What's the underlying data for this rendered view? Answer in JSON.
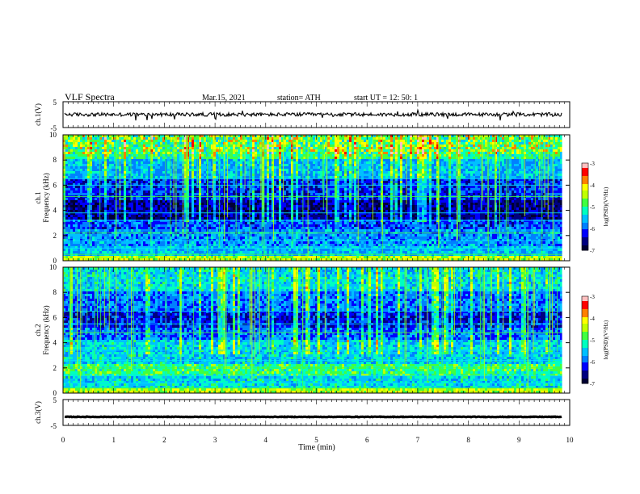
{
  "header": {
    "title": "VLF  Spectra",
    "date": "Mar.15, 2021",
    "station": "station= ATH",
    "start": "start  UT  =    12: 50: 1"
  },
  "chart_data": [
    {
      "type": "line",
      "name": "ch1-waveform",
      "ylabel": "ch.1(V)",
      "ylim": [
        -5,
        5
      ],
      "yticks": [
        "5",
        "-5"
      ],
      "xlim": [
        0,
        10
      ],
      "level": 0.05
    },
    {
      "type": "heatmap",
      "name": "ch1-spectrogram",
      "ylabel": "ch.1\nFrequency (kHz)",
      "ylim": [
        0,
        10
      ],
      "yticks": [
        "0",
        "2",
        "4",
        "6",
        "8",
        "10"
      ],
      "xlim": [
        0,
        10
      ],
      "data_end_min": 9.85,
      "colorbar": {
        "label": "log(PSD)(V²/Hz)",
        "range": [
          -7,
          -3
        ],
        "ticks": [
          "-3",
          "-4",
          "-5",
          "-6",
          "-7"
        ]
      }
    },
    {
      "type": "heatmap",
      "name": "ch2-spectrogram",
      "ylabel": "ch.2\nFrequency (kHz)",
      "ylim": [
        0,
        10
      ],
      "yticks": [
        "0",
        "2",
        "4",
        "6",
        "8",
        "10"
      ],
      "xlim": [
        0,
        10
      ],
      "data_end_min": 9.85,
      "colorbar": {
        "label": "log(PSD)(V²/Hz)",
        "range": [
          -7,
          -3
        ],
        "ticks": [
          "-3",
          "-4",
          "-5",
          "-6",
          "-7"
        ]
      }
    },
    {
      "type": "line",
      "name": "ch3-waveform",
      "ylabel": "ch.3(V)",
      "ylim": [
        -5,
        5
      ],
      "yticks": [
        "5",
        "-5"
      ],
      "xlim": [
        0,
        10
      ],
      "level": -1.7
    }
  ],
  "xaxis": {
    "label": "Time  (min)",
    "ticks": [
      "0",
      "1",
      "2",
      "3",
      "4",
      "5",
      "6",
      "7",
      "8",
      "9",
      "10"
    ]
  },
  "colormap": [
    "#000033",
    "#000080",
    "#0000ff",
    "#0080ff",
    "#00c0ff",
    "#00ffc0",
    "#40ff40",
    "#c0ff00",
    "#ffff00",
    "#ff8000",
    "#ff0000",
    "#ffc0c0"
  ]
}
